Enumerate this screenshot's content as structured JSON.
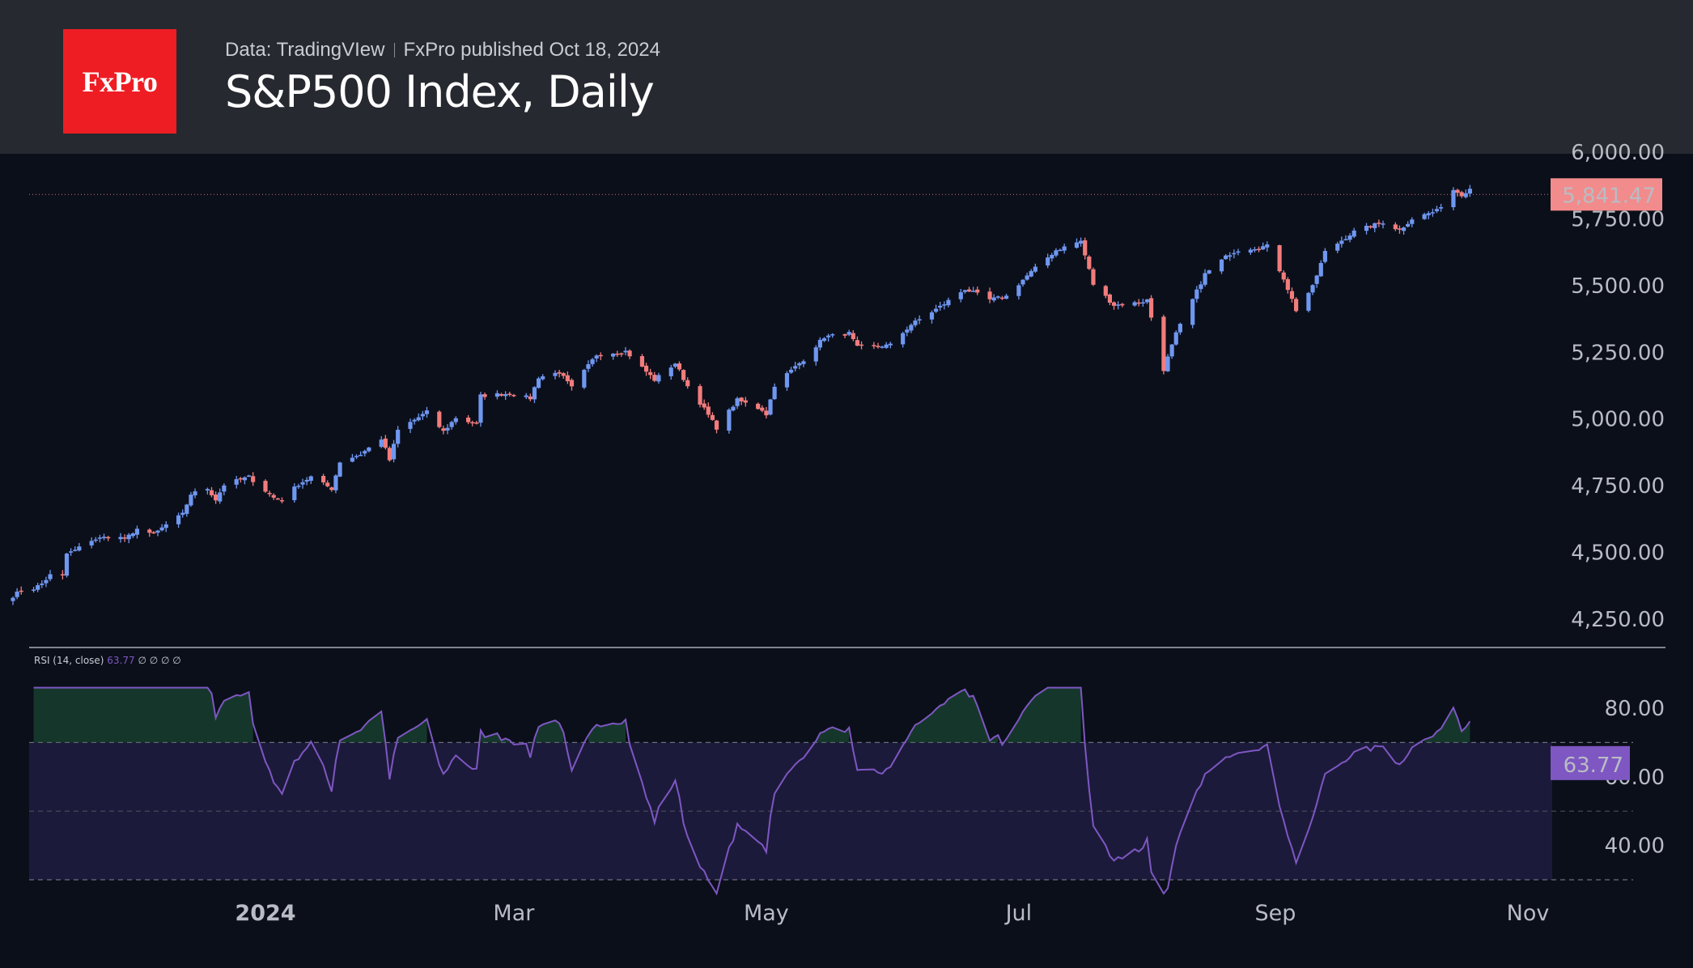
{
  "header": {
    "logo_text": "FxPro",
    "data_source": "Data: TradingVIew",
    "published": "FxPro published Oct 18, 2024",
    "title": "S&P500 Index, Daily"
  },
  "colors": {
    "up": "#6f97f0",
    "down": "#f27c7c",
    "rsi_line": "#7e57c2",
    "rsi_band": "#1c1a3a",
    "price_badge": "#f28b8b",
    "rsi_badge": "#7e57c2"
  },
  "chart_data": [
    {
      "type": "candlestick",
      "x_tick_labels": [
        "2024",
        "Mar",
        "May",
        "Jul",
        "Sep",
        "Nov"
      ],
      "y_tick_labels": [
        "6,000.00",
        "5,750.00",
        "5,500.00",
        "5,250.00",
        "5,000.00",
        "4,750.00",
        "4,500.00",
        "4,250.00"
      ],
      "y_ticks": [
        6000,
        5750,
        5500,
        5250,
        5000,
        4750,
        4500,
        4250
      ],
      "ylim": [
        4160,
        6000
      ],
      "last_price": 5841.47,
      "last_price_label": "5,841.47",
      "date_range": [
        "2023-11-01",
        "2024-10-18"
      ],
      "close_series_anchors": [
        [
          "2023-11-01",
          4337
        ],
        [
          "2023-11-03",
          4358
        ],
        [
          "2023-11-06",
          4365
        ],
        [
          "2023-11-08",
          4383
        ],
        [
          "2023-11-10",
          4415
        ],
        [
          "2023-11-13",
          4411
        ],
        [
          "2023-11-14",
          4495
        ],
        [
          "2023-11-16",
          4508
        ],
        [
          "2023-11-20",
          4547
        ],
        [
          "2023-11-24",
          4559
        ],
        [
          "2023-11-28",
          4554
        ],
        [
          "2023-11-30",
          4567
        ],
        [
          "2023-12-01",
          4594
        ],
        [
          "2023-12-05",
          4567
        ],
        [
          "2023-12-08",
          4604
        ],
        [
          "2023-12-12",
          4643
        ],
        [
          "2023-12-14",
          4719
        ],
        [
          "2023-12-18",
          4740
        ],
        [
          "2023-12-20",
          4698
        ],
        [
          "2023-12-22",
          4754
        ],
        [
          "2023-12-28",
          4783
        ],
        [
          "2024-01-03",
          4705
        ],
        [
          "2024-01-05",
          4697
        ],
        [
          "2024-01-09",
          4756
        ],
        [
          "2024-01-12",
          4783
        ],
        [
          "2024-01-17",
          4739
        ],
        [
          "2024-01-19",
          4840
        ],
        [
          "2024-01-24",
          4868
        ],
        [
          "2024-01-29",
          4927
        ],
        [
          "2024-01-31",
          4846
        ],
        [
          "2024-02-02",
          4958
        ],
        [
          "2024-02-09",
          5026
        ],
        [
          "2024-02-13",
          4953
        ],
        [
          "2024-02-16",
          5005
        ],
        [
          "2024-02-21",
          4981
        ],
        [
          "2024-02-22",
          5087
        ],
        [
          "2024-02-29",
          5096
        ],
        [
          "2024-03-05",
          5078
        ],
        [
          "2024-03-07",
          5157
        ],
        [
          "2024-03-12",
          5175
        ],
        [
          "2024-03-15",
          5117
        ],
        [
          "2024-03-21",
          5241
        ],
        [
          "2024-03-28",
          5254
        ],
        [
          "2024-04-04",
          5147
        ],
        [
          "2024-04-09",
          5209
        ],
        [
          "2024-04-12",
          5123
        ],
        [
          "2024-04-15",
          5061
        ],
        [
          "2024-04-19",
          4967
        ],
        [
          "2024-04-24",
          5071
        ],
        [
          "2024-04-30",
          5035
        ],
        [
          "2024-05-01",
          5018
        ],
        [
          "2024-05-03",
          5127
        ],
        [
          "2024-05-10",
          5223
        ],
        [
          "2024-05-15",
          5308
        ],
        [
          "2024-05-21",
          5321
        ],
        [
          "2024-05-23",
          5268
        ],
        [
          "2024-05-31",
          5277
        ],
        [
          "2024-06-05",
          5354
        ],
        [
          "2024-06-12",
          5421
        ],
        [
          "2024-06-18",
          5487
        ],
        [
          "2024-06-24",
          5447
        ],
        [
          "2024-06-28",
          5460
        ],
        [
          "2024-07-03",
          5537
        ],
        [
          "2024-07-10",
          5633
        ],
        [
          "2024-07-16",
          5667
        ],
        [
          "2024-07-19",
          5505
        ],
        [
          "2024-07-24",
          5427
        ],
        [
          "2024-07-30",
          5436
        ],
        [
          "2024-08-01",
          5446
        ],
        [
          "2024-08-05",
          5186
        ],
        [
          "2024-08-08",
          5319
        ],
        [
          "2024-08-15",
          5543
        ],
        [
          "2024-08-21",
          5620
        ],
        [
          "2024-08-23",
          5634
        ],
        [
          "2024-08-30",
          5648
        ],
        [
          "2024-09-03",
          5528
        ],
        [
          "2024-09-06",
          5408
        ],
        [
          "2024-09-10",
          5495
        ],
        [
          "2024-09-13",
          5626
        ],
        [
          "2024-09-20",
          5702
        ],
        [
          "2024-09-27",
          5738
        ],
        [
          "2024-10-01",
          5708
        ],
        [
          "2024-10-04",
          5751
        ],
        [
          "2024-10-10",
          5780
        ],
        [
          "2024-10-14",
          5859
        ],
        [
          "2024-10-16",
          5842
        ],
        [
          "2024-10-18",
          5864
        ]
      ]
    },
    {
      "type": "line",
      "legend_name": "RSI (14, close)",
      "legend_value": "63.77",
      "legend_extra": "∅ ∅ ∅ ∅",
      "y_tick_labels": [
        "80.00",
        "60.00",
        "40.00"
      ],
      "y_ticks": [
        80,
        60,
        40
      ],
      "ylim": [
        22,
        98
      ],
      "band": [
        30,
        70
      ],
      "midline": 50,
      "last_value": 63.77,
      "last_value_label": "63.77"
    }
  ]
}
